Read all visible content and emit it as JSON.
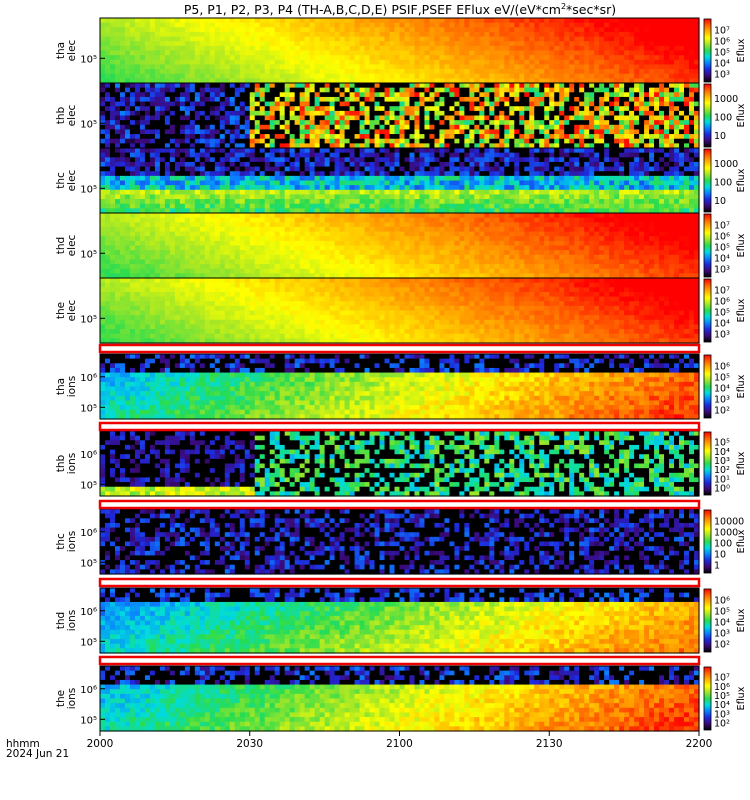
{
  "chart_data": {
    "type": "heatmap",
    "title": "P5, P1, P2, P3, P4 (TH-A,B,C,D,E) PSIF,PSEF EFlux eV/(eV*cm",
    "title_sup": "2",
    "title_tail": "*sec*sr)",
    "xlabel": "hhmm",
    "date_label": "2024 Jun 21",
    "x_ticks": [
      "2000",
      "2030",
      "2100",
      "2130",
      "2200"
    ],
    "x_range": [
      "2000",
      "2200"
    ],
    "colorbar_label": "Eflux",
    "colormap": [
      "#000000",
      "#3c0a78",
      "#1e28dc",
      "#0a82ff",
      "#00dcdc",
      "#28dc50",
      "#a0e628",
      "#ffff00",
      "#ffb400",
      "#ff6400",
      "#ff0000"
    ],
    "panels": [
      {
        "ylabel": [
          "tha",
          "elec"
        ],
        "y_ticks": [
          "10⁵"
        ],
        "cbar_ticks": [
          "10³",
          "10⁴",
          "10⁵",
          "10⁶",
          "10⁷"
        ]
      },
      {
        "ylabel": [
          "thb",
          "elec"
        ],
        "y_ticks": [
          "10⁵"
        ],
        "cbar_ticks": [
          "10",
          "100",
          "1000"
        ]
      },
      {
        "ylabel": [
          "thc",
          "elec"
        ],
        "y_ticks": [
          "10⁵"
        ],
        "cbar_ticks": [
          "10",
          "100",
          "1000"
        ]
      },
      {
        "ylabel": [
          "thd",
          "elec"
        ],
        "y_ticks": [
          "10⁵"
        ],
        "cbar_ticks": [
          "10³",
          "10⁴",
          "10⁵",
          "10⁶",
          "10⁷"
        ]
      },
      {
        "ylabel": [
          "the",
          "elec"
        ],
        "y_ticks": [
          "10⁵"
        ],
        "cbar_ticks": [
          "10³",
          "10⁴",
          "10⁵",
          "10⁶",
          "10⁷"
        ]
      },
      {
        "ylabel": [
          "tha",
          "ions"
        ],
        "y_ticks": [
          "10⁵",
          "10⁶"
        ],
        "cbar_ticks": [
          "10²",
          "10³",
          "10⁴",
          "10⁵",
          "10⁶"
        ]
      },
      {
        "ylabel": [
          "thb",
          "ions"
        ],
        "y_ticks": [
          "10⁵",
          "10⁶"
        ],
        "cbar_ticks": [
          "10⁰",
          "10¹",
          "10²",
          "10³",
          "10⁴",
          "10⁵"
        ]
      },
      {
        "ylabel": [
          "thc",
          "ions"
        ],
        "y_ticks": [
          "10⁵",
          "10⁶"
        ],
        "cbar_ticks": [
          "1",
          "10",
          "100",
          "1000",
          "10000"
        ]
      },
      {
        "ylabel": [
          "thd",
          "ions"
        ],
        "y_ticks": [
          "10⁵",
          "10⁶"
        ],
        "cbar_ticks": [
          "10²",
          "10³",
          "10⁴",
          "10⁵",
          "10⁶"
        ]
      },
      {
        "ylabel": [
          "the",
          "ions"
        ],
        "y_ticks": [
          "10⁵",
          "10⁶"
        ],
        "cbar_ticks": [
          "10²",
          "10³",
          "10⁴",
          "10⁵",
          "10⁶",
          "10⁷"
        ]
      }
    ]
  }
}
